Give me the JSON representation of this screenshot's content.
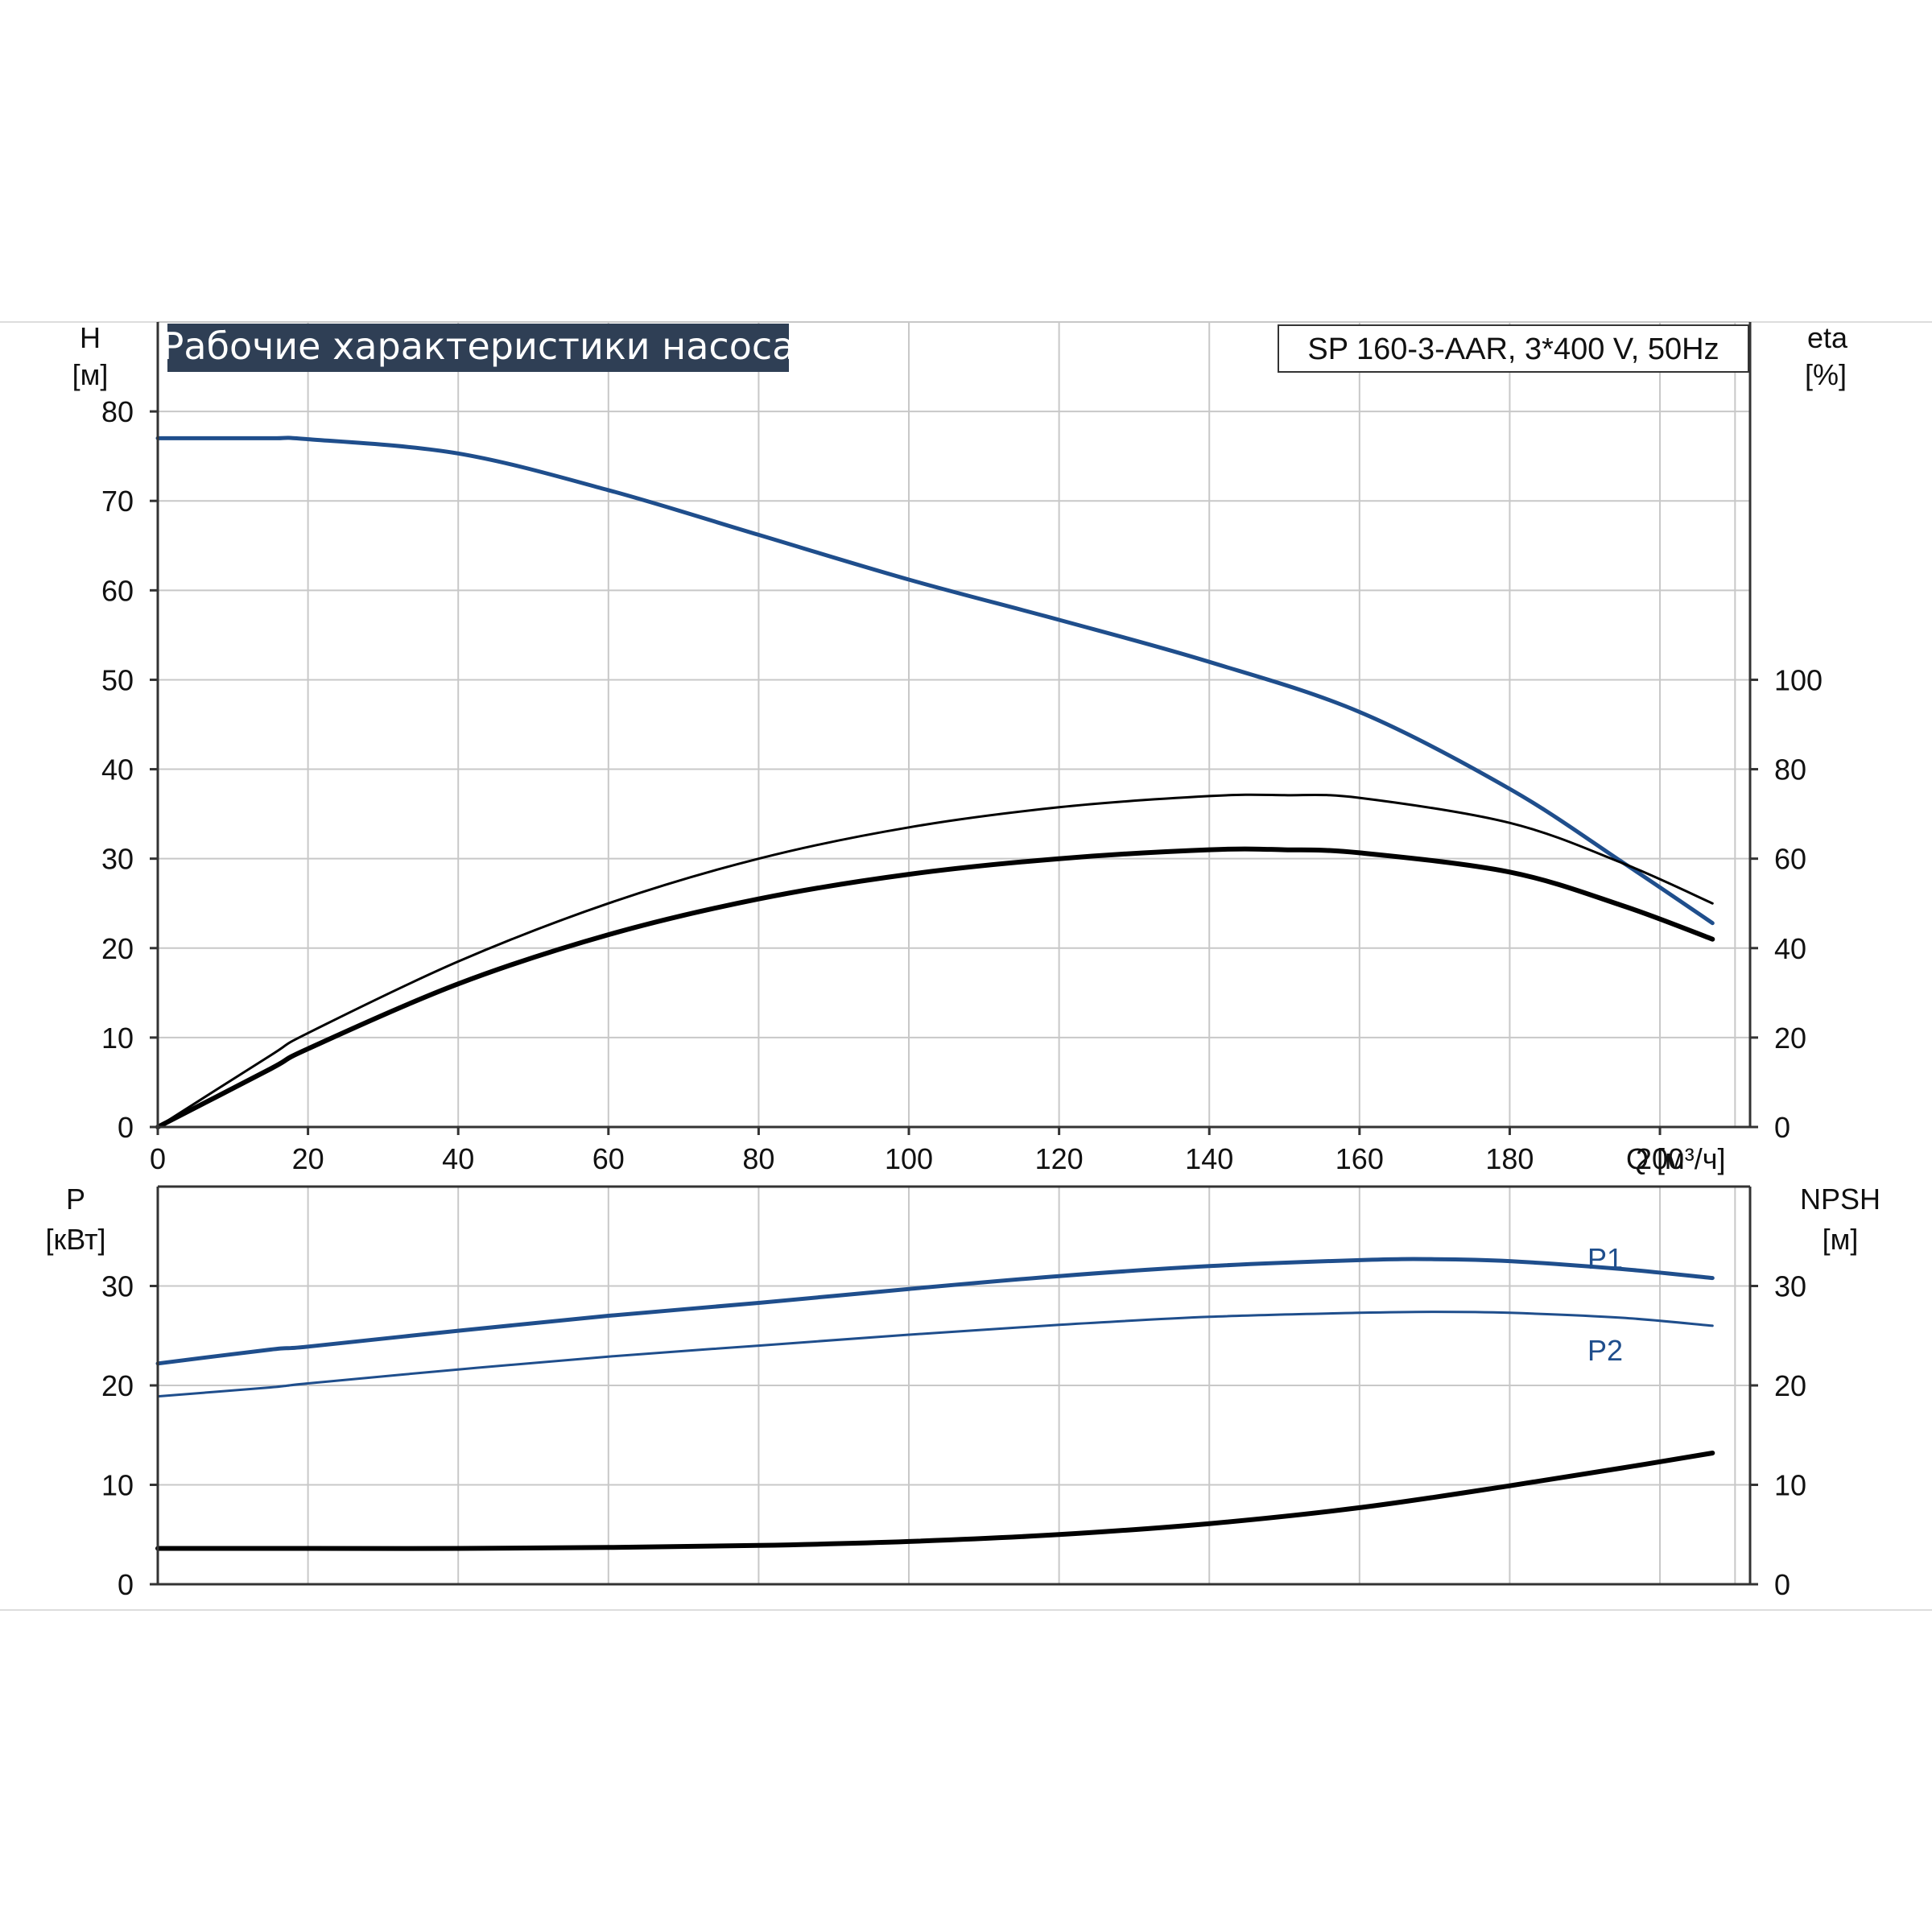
{
  "title": "Рабочие характеристики насоса",
  "model": "SP 160-3-AAR, 3*400 V, 50Hz",
  "colors": {
    "blue": "#1f4e8c",
    "black": "#000000",
    "grid": "#c8c8c8",
    "title_bg": "#2f3f55"
  },
  "chart_data": [
    {
      "type": "line",
      "xlabel": "Q [м³/ч]",
      "xlim": [
        0,
        212
      ],
      "x_ticks": [
        0,
        20,
        40,
        60,
        80,
        100,
        120,
        140,
        160,
        180,
        200
      ],
      "ylabel_left": {
        "name": "H",
        "unit": "[м]"
      },
      "ylim_left": [
        0,
        90
      ],
      "left_ticks": [
        0,
        10,
        20,
        30,
        40,
        50,
        60,
        70,
        80
      ],
      "ylabel_right": {
        "name": "eta",
        "unit": "[%]"
      },
      "ylim_right": [
        0,
        180
      ],
      "right_ticks": [
        0,
        20,
        40,
        60,
        80,
        100
      ],
      "grid": true,
      "series": [
        {
          "axis": "left",
          "color": "#1f4e8c",
          "width": 5,
          "x": [
            0,
            15,
            20,
            40,
            60,
            80,
            100,
            120,
            140,
            160,
            180,
            195,
            207
          ],
          "y": [
            77,
            77,
            76.9,
            75.3,
            71.2,
            66.2,
            61.2,
            56.7,
            52,
            46.4,
            37.8,
            29.6,
            22.8
          ]
        },
        {
          "axis": "right",
          "color": "#000000",
          "width": 3,
          "x": [
            0,
            15,
            20,
            40,
            60,
            80,
            100,
            120,
            140,
            150,
            160,
            180,
            195,
            207
          ],
          "y": [
            0,
            16,
            21,
            37,
            50,
            60,
            67,
            71.5,
            74,
            74.2,
            73.6,
            68,
            59,
            50
          ]
        },
        {
          "axis": "right",
          "color": "#000000",
          "width": 6,
          "x": [
            0,
            15,
            20,
            40,
            60,
            80,
            100,
            120,
            140,
            150,
            160,
            180,
            195,
            207
          ],
          "y": [
            0,
            13,
            17.5,
            32,
            43,
            51,
            56.5,
            60,
            62,
            62,
            61.3,
            57,
            49.5,
            42
          ]
        }
      ]
    },
    {
      "type": "line",
      "ylabel_left": {
        "name": "P",
        "unit": "[кВт]"
      },
      "ylim_left": [
        0,
        40
      ],
      "left_ticks": [
        0,
        10,
        20,
        30
      ],
      "ylabel_right": {
        "name": "NPSH",
        "unit": "[м]"
      },
      "ylim_right": [
        0,
        40
      ],
      "right_ticks": [
        0,
        10,
        20,
        30
      ],
      "grid": true,
      "series": [
        {
          "name": "P1",
          "color": "#1f4e8c",
          "width": 5,
          "x": [
            0,
            15,
            20,
            40,
            60,
            80,
            100,
            120,
            140,
            160,
            170,
            180,
            195,
            207
          ],
          "y": [
            22.2,
            23.6,
            23.9,
            25.5,
            27,
            28.3,
            29.7,
            31,
            32,
            32.6,
            32.7,
            32.5,
            31.7,
            30.8
          ]
        },
        {
          "name": "P2",
          "color": "#1f4e8c",
          "width": 3,
          "x": [
            0,
            15,
            20,
            40,
            60,
            80,
            100,
            120,
            140,
            160,
            170,
            180,
            195,
            207
          ],
          "y": [
            18.9,
            19.8,
            20.2,
            21.6,
            22.9,
            24,
            25.1,
            26.1,
            26.9,
            27.3,
            27.4,
            27.3,
            26.8,
            26
          ]
        },
        {
          "axis": "right",
          "color": "#000000",
          "width": 6,
          "x": [
            0,
            15,
            20,
            40,
            60,
            80,
            100,
            120,
            140,
            160,
            180,
            195,
            207
          ],
          "y": [
            3.6,
            3.6,
            3.6,
            3.6,
            3.7,
            3.9,
            4.3,
            5,
            6.1,
            7.7,
            9.9,
            11.7,
            13.2
          ]
        }
      ]
    }
  ]
}
